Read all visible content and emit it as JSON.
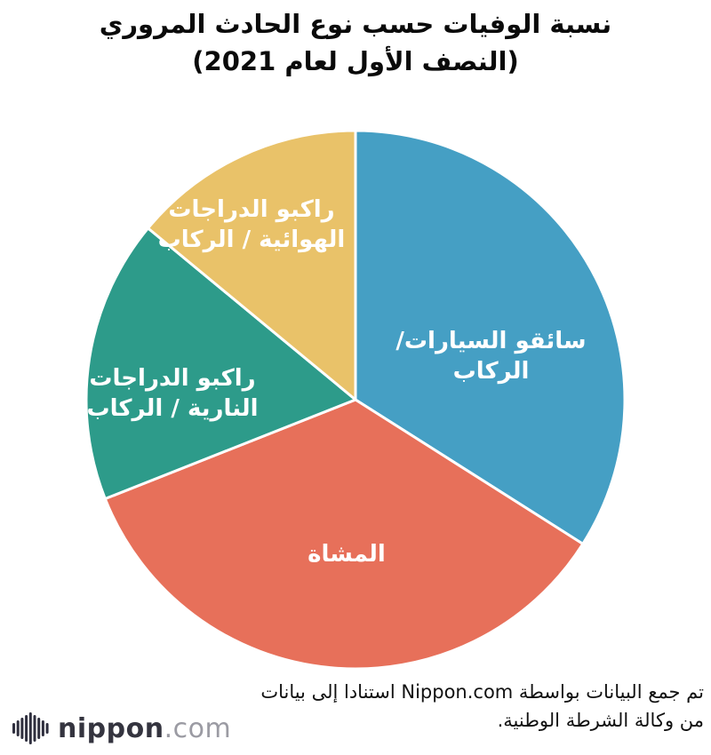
{
  "title": {
    "line1": "نسبة الوفيات حسب نوع الحادث المروري",
    "line2": "(النصف الأول لعام 2021)"
  },
  "chart_data": {
    "type": "pie",
    "title": "نسبة الوفيات حسب نوع الحادث المروري (النصف الأول لعام 2021)",
    "start_angle_deg": 0,
    "direction": "clockwise",
    "units": "percent",
    "legend_position": "none",
    "slices": [
      {
        "label": "سائقو السيارات/ الركاب",
        "value": 34,
        "color": "#459fc4",
        "label_lines": [
          "سائقو السيارات/ الركاب"
        ]
      },
      {
        "label": "المشاة",
        "value": 35,
        "color": "#e7705a",
        "label_lines": [
          "المشاة"
        ]
      },
      {
        "label": "راكبو الدراجات النارية / الركاب",
        "value": 17,
        "color": "#2d9b8a",
        "label_lines": [
          "راكبو الدراجات",
          "النارية / الركاب"
        ]
      },
      {
        "label": "راكبو الدراجات الهوائية / الركاب",
        "value": 14,
        "color": "#e9c269",
        "label_lines": [
          "راكبو الدراجات",
          "الهوائية / الركاب"
        ]
      }
    ],
    "slice_border_color": "#ffffff"
  },
  "caption": {
    "line1": "تم جمع البيانات بواسطة Nippon.com استنادا إلى بيانات",
    "line2": "من وكالة الشرطة الوطنية."
  },
  "logo": {
    "brand": "nippon",
    "tld": ".com",
    "icon": "soundwave-bars-icon"
  }
}
